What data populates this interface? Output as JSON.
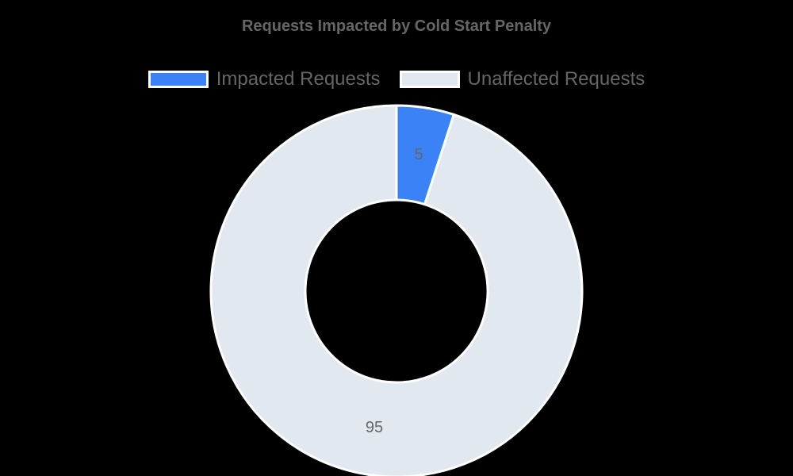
{
  "chart_data": {
    "type": "pie",
    "subtype": "doughnut",
    "title": "Requests Impacted by Cold Start Penalty",
    "categories": [
      "Impacted Requests",
      "Unaffected Requests"
    ],
    "values": [
      5,
      95
    ],
    "colors": [
      "#3b82f6",
      "#e2e8f0"
    ],
    "data_labels": [
      "5",
      "95"
    ],
    "legend_position": "top",
    "border_color": "#ffffff"
  },
  "title": "Requests Impacted by Cold Start Penalty",
  "legend": [
    {
      "label": "Impacted Requests",
      "color": "#3b82f6"
    },
    {
      "label": "Unaffected Requests",
      "color": "#e2e8f0"
    }
  ],
  "labels": {
    "impacted": "5",
    "unaffected": "95"
  }
}
